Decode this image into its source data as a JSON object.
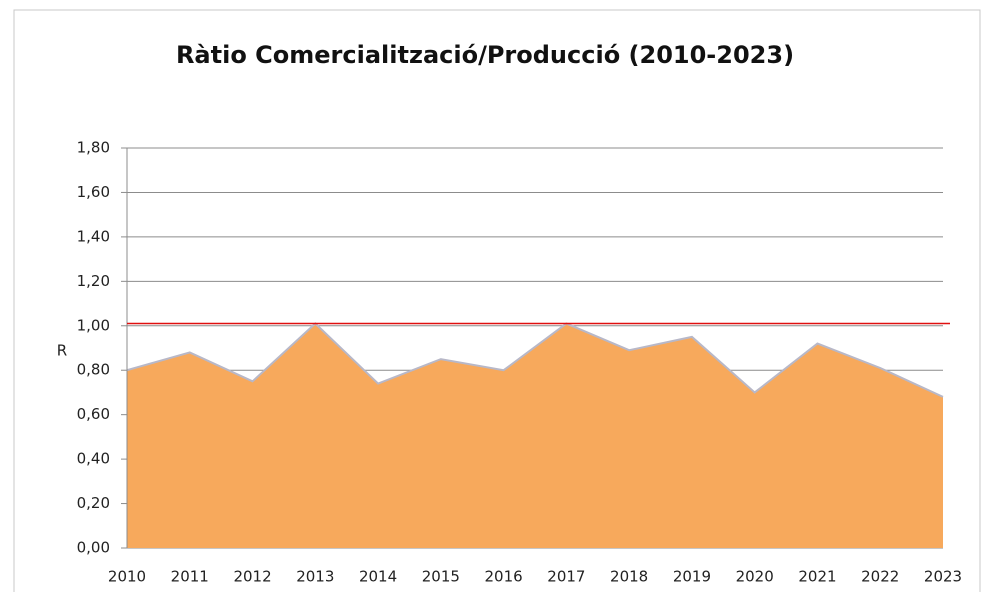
{
  "chart_data": {
    "type": "area",
    "title": "Ràtio Comercialització/Producció (2010-2023)",
    "y_label": "R",
    "categories": [
      "2010",
      "2011",
      "2012",
      "2013",
      "2014",
      "2015",
      "2016",
      "2017",
      "2018",
      "2019",
      "2020",
      "2021",
      "2022",
      "2023"
    ],
    "values": [
      0.8,
      0.88,
      0.75,
      1.01,
      0.74,
      0.85,
      0.8,
      1.01,
      0.89,
      0.95,
      0.7,
      0.92,
      0.81,
      0.68
    ],
    "color": "#f7a95c",
    "line_color": "#b8b8c8",
    "reference_line": 1.01,
    "reference_color": "#e01010",
    "ylim": [
      0,
      1.8
    ],
    "yticks": [
      {
        "value": 0,
        "label": "0,00"
      },
      {
        "value": 0.2,
        "label": "0,20"
      },
      {
        "value": 0.4,
        "label": "0,40"
      },
      {
        "value": 0.6,
        "label": "0,60"
      },
      {
        "value": 0.8,
        "label": "0,80"
      },
      {
        "value": 1.0,
        "label": "1,00"
      },
      {
        "value": 1.2,
        "label": "1,20"
      },
      {
        "value": 1.4,
        "label": "1,40"
      },
      {
        "value": 1.6,
        "label": "1,60"
      },
      {
        "value": 1.8,
        "label": "1,80"
      }
    ],
    "grid": true
  }
}
